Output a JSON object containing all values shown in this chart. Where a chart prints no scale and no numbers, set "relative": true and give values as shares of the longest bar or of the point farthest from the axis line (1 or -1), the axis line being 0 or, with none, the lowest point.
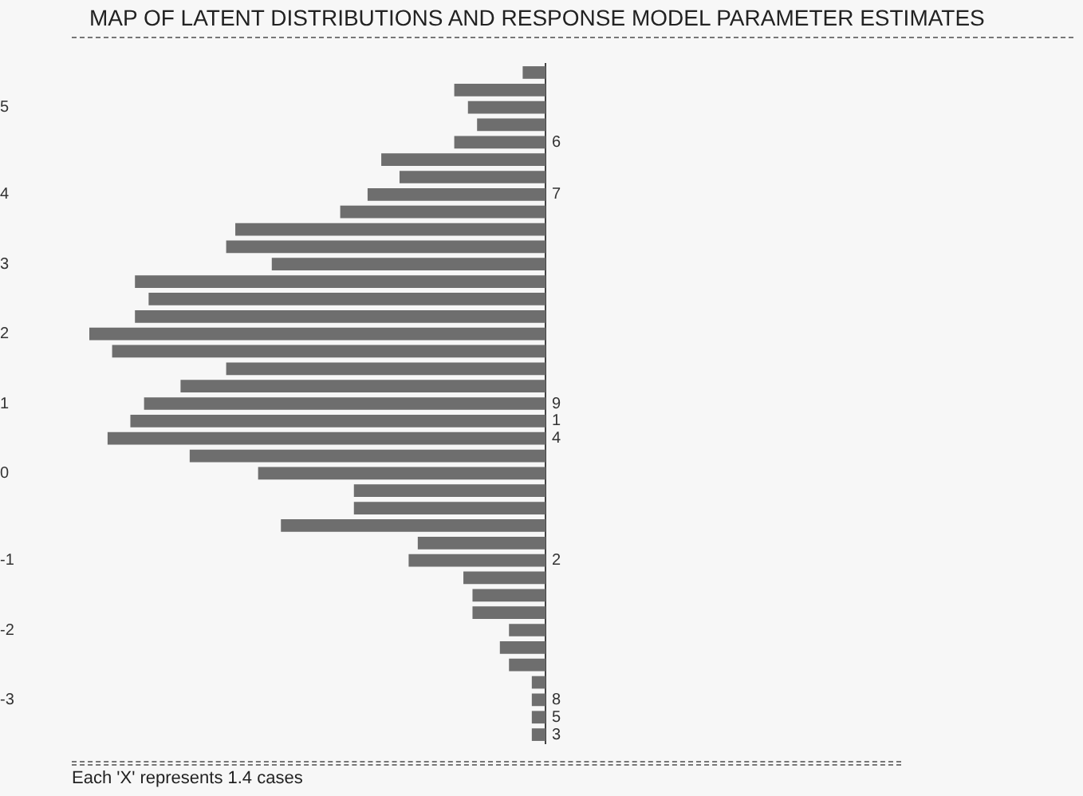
{
  "chart_data": {
    "type": "bar",
    "orientation": "horizontal",
    "relative": true,
    "title": "MAP OF LATENT DISTRIBUTIONS AND RESPONSE MODEL PARAMETER ESTIMATES",
    "annotations": [
      "Each 'X' represents  1.4 cases"
    ],
    "categories": [
      null,
      null,
      "5",
      null,
      null,
      null,
      null,
      "4",
      null,
      null,
      null,
      "3",
      null,
      null,
      null,
      "2",
      null,
      null,
      null,
      "1",
      null,
      null,
      null,
      "0",
      null,
      null,
      null,
      null,
      "-1",
      null,
      null,
      null,
      "-2",
      null,
      null,
      null,
      "-3",
      null,
      null
    ],
    "y2_categories": [
      null,
      null,
      null,
      null,
      "6",
      null,
      null,
      "7",
      null,
      null,
      null,
      null,
      null,
      null,
      null,
      null,
      null,
      null,
      null,
      "9",
      "1",
      "4",
      null,
      null,
      null,
      null,
      null,
      null,
      "2",
      null,
      null,
      null,
      null,
      null,
      null,
      null,
      "8",
      "5",
      "3"
    ],
    "values": [
      0.05,
      0.2,
      0.17,
      0.15,
      0.2,
      0.36,
      0.32,
      0.39,
      0.45,
      0.68,
      0.7,
      0.6,
      0.9,
      0.87,
      0.9,
      1,
      0.95,
      0.7,
      0.8,
      0.88,
      0.91,
      0.96,
      0.78,
      0.63,
      0.42,
      0.42,
      0.58,
      0.28,
      0.3,
      0.18,
      0.16,
      0.16,
      0.08,
      0.1,
      0.08,
      0.03,
      0.03,
      0.03,
      0.03
    ],
    "color": "#6e6e6e"
  }
}
